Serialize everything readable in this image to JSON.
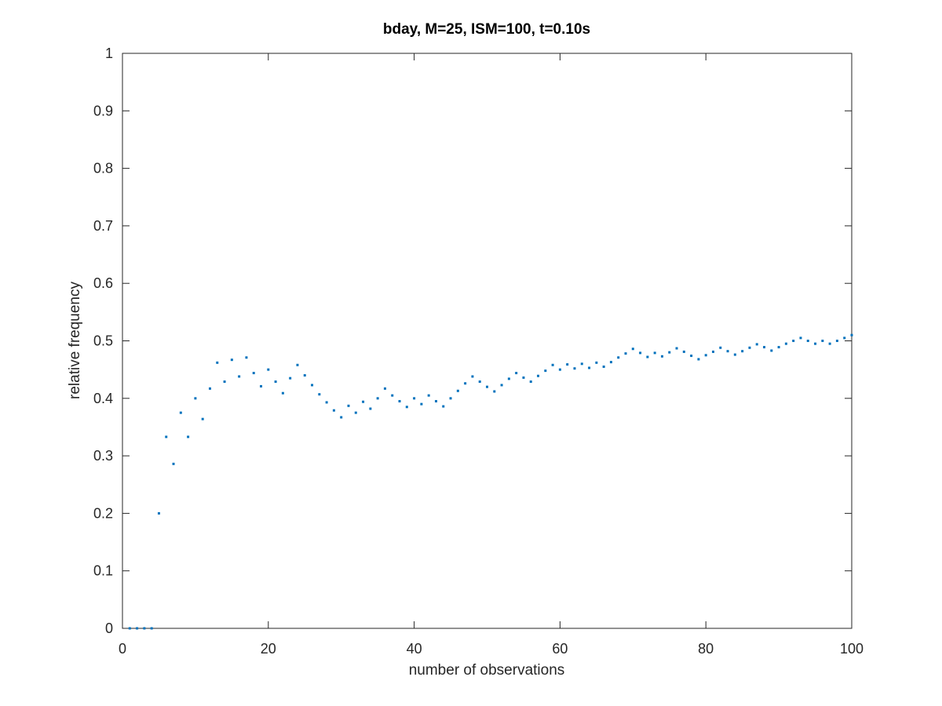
{
  "chart_data": {
    "type": "scatter",
    "title": "bday, M=25, ISM=100, t=0.10s",
    "xlabel": "number of observations",
    "ylabel": "relative frequency",
    "xlim": [
      0,
      100
    ],
    "ylim": [
      0,
      1
    ],
    "xticks": [
      0,
      20,
      40,
      60,
      80,
      100
    ],
    "xtick_labels": [
      "0",
      "20",
      "40",
      "60",
      "80",
      "100"
    ],
    "yticks": [
      0,
      0.1,
      0.2,
      0.3,
      0.4,
      0.5,
      0.6,
      0.7,
      0.8,
      0.9,
      1
    ],
    "ytick_labels": [
      "0",
      "0.1",
      "0.2",
      "0.3",
      "0.4",
      "0.5",
      "0.6",
      "0.7",
      "0.8",
      "0.9",
      "1"
    ],
    "grid": false,
    "marker_color": "#0072BD",
    "x": [
      1,
      2,
      3,
      4,
      5,
      6,
      7,
      8,
      9,
      10,
      11,
      12,
      13,
      14,
      15,
      16,
      17,
      18,
      19,
      20,
      21,
      22,
      23,
      24,
      25,
      26,
      27,
      28,
      29,
      30,
      31,
      32,
      33,
      34,
      35,
      36,
      37,
      38,
      39,
      40,
      41,
      42,
      43,
      44,
      45,
      46,
      47,
      48,
      49,
      50,
      51,
      52,
      53,
      54,
      55,
      56,
      57,
      58,
      59,
      60,
      61,
      62,
      63,
      64,
      65,
      66,
      67,
      68,
      69,
      70,
      71,
      72,
      73,
      74,
      75,
      76,
      77,
      78,
      79,
      80,
      81,
      82,
      83,
      84,
      85,
      86,
      87,
      88,
      89,
      90,
      91,
      92,
      93,
      94,
      95,
      96,
      97,
      98,
      99,
      100
    ],
    "y": [
      0,
      0,
      0,
      0,
      0.2,
      0.333,
      0.286,
      0.375,
      0.333,
      0.4,
      0.364,
      0.417,
      0.462,
      0.429,
      0.467,
      0.438,
      0.471,
      0.444,
      0.421,
      0.45,
      0.429,
      0.409,
      0.435,
      0.458,
      0.44,
      0.423,
      0.407,
      0.393,
      0.379,
      0.367,
      0.387,
      0.375,
      0.394,
      0.382,
      0.4,
      0.417,
      0.405,
      0.395,
      0.385,
      0.4,
      0.39,
      0.405,
      0.395,
      0.386,
      0.4,
      0.413,
      0.426,
      0.438,
      0.429,
      0.42,
      0.412,
      0.423,
      0.434,
      0.444,
      0.436,
      0.429,
      0.439,
      0.448,
      0.458,
      0.45,
      0.459,
      0.452,
      0.46,
      0.453,
      0.462,
      0.455,
      0.463,
      0.471,
      0.478,
      0.486,
      0.479,
      0.472,
      0.479,
      0.473,
      0.48,
      0.487,
      0.481,
      0.474,
      0.468,
      0.475,
      0.481,
      0.488,
      0.482,
      0.476,
      0.482,
      0.488,
      0.494,
      0.489,
      0.483,
      0.489,
      0.495,
      0.5,
      0.505,
      0.5,
      0.495,
      0.5,
      0.495,
      0.5,
      0.505,
      0.51
    ]
  }
}
